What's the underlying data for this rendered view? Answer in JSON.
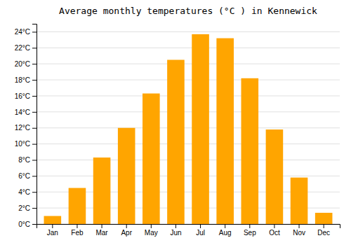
{
  "chart_data": {
    "type": "bar",
    "title": "Average monthly temperatures (°C ) in Kennewick",
    "categories": [
      "Jan",
      "Feb",
      "Mar",
      "Apr",
      "May",
      "Jun",
      "Jul",
      "Aug",
      "Sep",
      "Oct",
      "Nov",
      "Dec"
    ],
    "values": [
      1.0,
      4.5,
      8.3,
      12.0,
      16.3,
      20.5,
      23.7,
      23.2,
      18.2,
      11.8,
      5.8,
      1.4
    ],
    "color": "#FFA500",
    "ylim": [
      0,
      25
    ],
    "yticks": [
      {
        "value": 0,
        "label": "0°C"
      },
      {
        "value": 2,
        "label": "2°C"
      },
      {
        "value": 4,
        "label": "4°C"
      },
      {
        "value": 6,
        "label": "6°C"
      },
      {
        "value": 8,
        "label": "8°C"
      },
      {
        "value": 10,
        "label": "10°C"
      },
      {
        "value": 12,
        "label": "12°C"
      },
      {
        "value": 14,
        "label": "14°C"
      },
      {
        "value": 16,
        "label": "16°C"
      },
      {
        "value": 18,
        "label": "18°C"
      },
      {
        "value": 20,
        "label": "20°C"
      },
      {
        "value": 22,
        "label": "22°C"
      },
      {
        "value": 24,
        "label": "24°C"
      }
    ],
    "grid": true
  }
}
